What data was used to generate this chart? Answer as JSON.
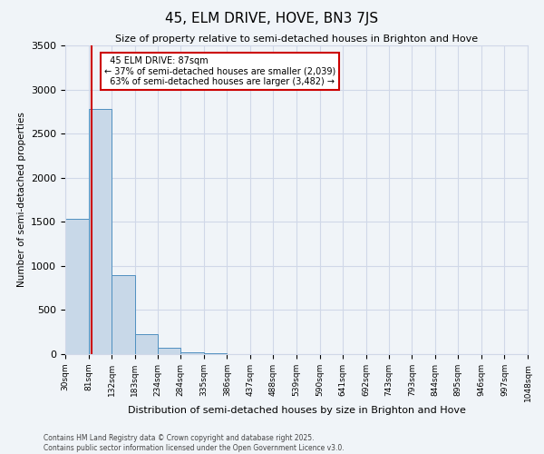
{
  "title": "45, ELM DRIVE, HOVE, BN3 7JS",
  "subtitle": "Size of property relative to semi-detached houses in Brighton and Hove",
  "xlabel": "Distribution of semi-detached houses by size in Brighton and Hove",
  "ylabel": "Number of semi-detached properties",
  "bin_labels": [
    "30sqm",
    "81sqm",
    "132sqm",
    "183sqm",
    "234sqm",
    "284sqm",
    "335sqm",
    "386sqm",
    "437sqm",
    "488sqm",
    "539sqm",
    "590sqm",
    "641sqm",
    "692sqm",
    "743sqm",
    "793sqm",
    "844sqm",
    "895sqm",
    "946sqm",
    "997sqm",
    "1048sqm"
  ],
  "bin_edges": [
    30,
    81,
    132,
    183,
    234,
    284,
    335,
    386,
    437,
    488,
    539,
    590,
    641,
    692,
    743,
    793,
    844,
    895,
    946,
    997,
    1048
  ],
  "bar_heights": [
    1530,
    2780,
    900,
    230,
    75,
    25,
    8,
    3,
    1,
    1,
    0,
    0,
    0,
    0,
    0,
    0,
    0,
    0,
    0,
    0
  ],
  "bar_color": "#c8d8e8",
  "bar_edge_color": "#5090c0",
  "property_size": 87,
  "property_label": "45 ELM DRIVE: 87sqm",
  "pct_smaller": 37,
  "pct_larger": 63,
  "count_smaller": 2039,
  "count_larger": 3482,
  "vline_color": "#cc0000",
  "ylim": [
    0,
    3500
  ],
  "yticks": [
    0,
    500,
    1000,
    1500,
    2000,
    2500,
    3000,
    3500
  ],
  "annotation_box_color": "#cc0000",
  "grid_color": "#d0d8e8",
  "bg_color": "#f0f4f8",
  "footer_line1": "Contains HM Land Registry data © Crown copyright and database right 2025.",
  "footer_line2": "Contains public sector information licensed under the Open Government Licence v3.0."
}
